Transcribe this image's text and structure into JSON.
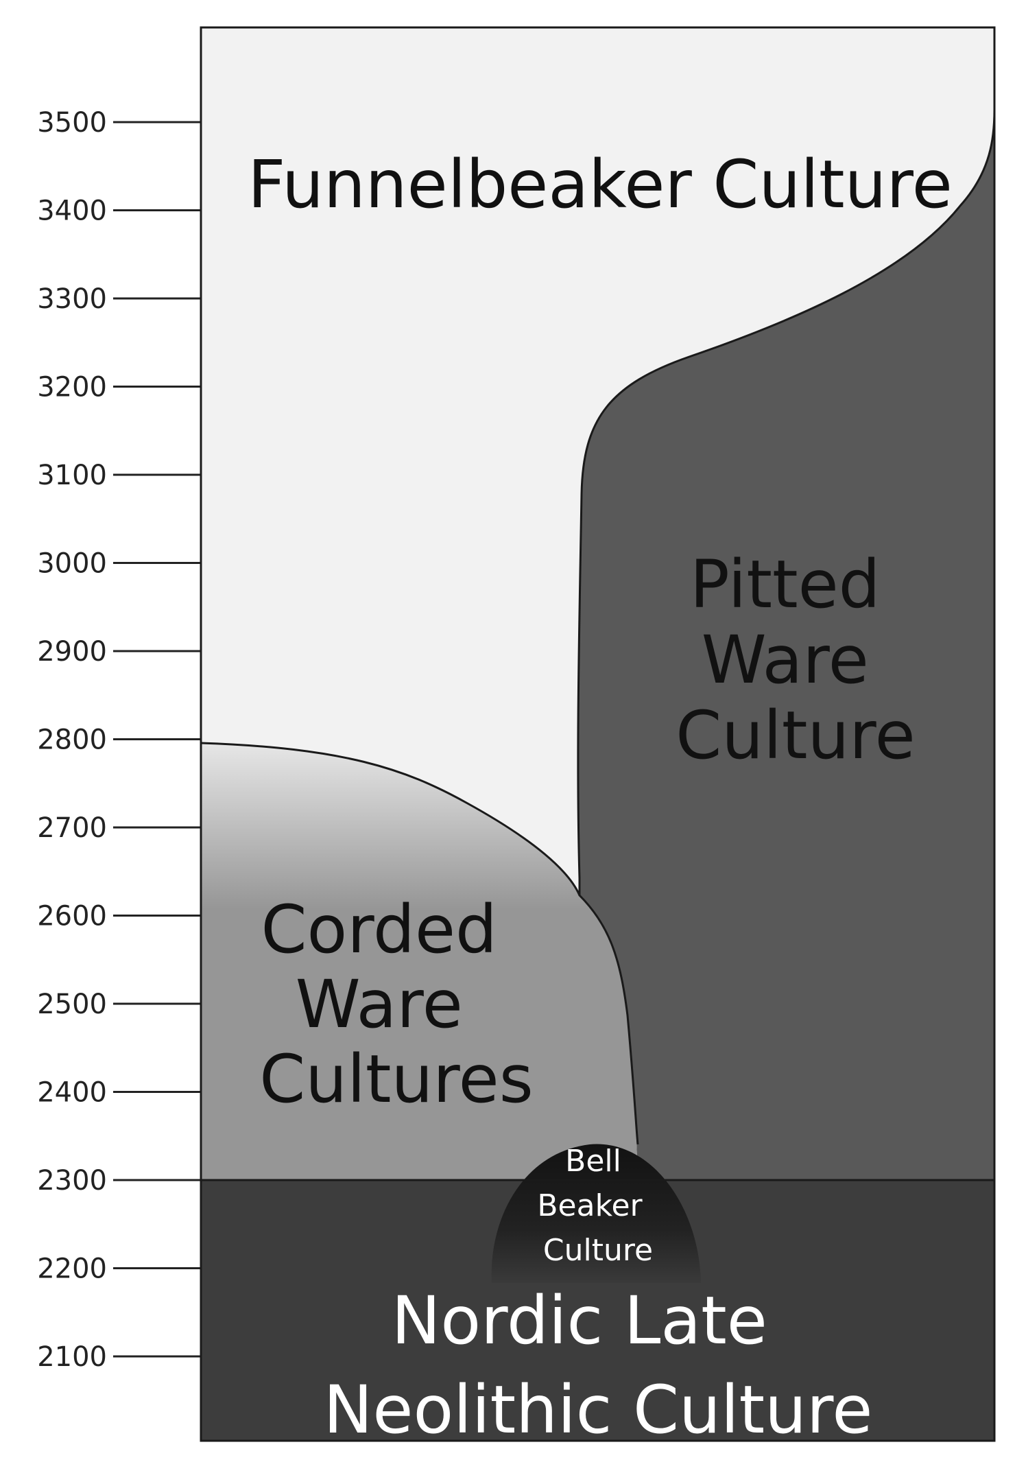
{
  "axis": {
    "ticks": [
      "3500",
      "3400",
      "3300",
      "3200",
      "3100",
      "3000",
      "2900",
      "2800",
      "2700",
      "2600",
      "2500",
      "2400",
      "2300",
      "2200",
      "2100"
    ]
  },
  "regions": {
    "funnelbeaker": {
      "label": "Funnelbeaker Culture",
      "color": "#f2f2f2"
    },
    "pitted_ware": {
      "lines": [
        "Pitted",
        "Ware",
        "Culture"
      ],
      "color": "#595959"
    },
    "corded_ware": {
      "lines": [
        "Corded",
        "Ware",
        "Cultures"
      ],
      "color": "#969696"
    },
    "bell_beaker": {
      "lines": [
        "Bell",
        "Beaker",
        "Culture"
      ],
      "color": "#262626"
    },
    "nordic_late_neolithic": {
      "lines": [
        "Nordic Late",
        "Neolithic Culture"
      ],
      "color": "#3d3d3d"
    }
  },
  "colors": {
    "outline": "#1a1a1a",
    "axis": "#222222"
  }
}
